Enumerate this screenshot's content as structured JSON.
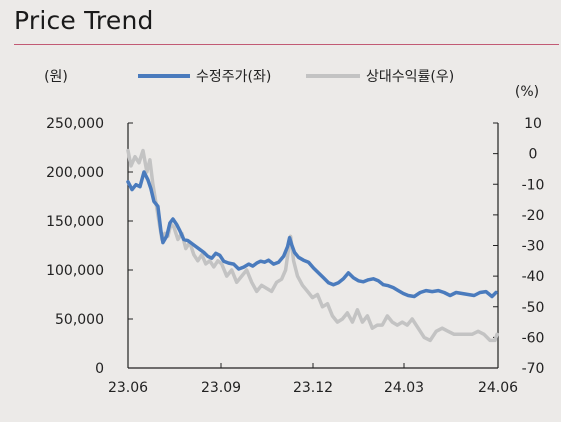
{
  "page": {
    "title": "Price Trend"
  },
  "chart_data": {
    "type": "line",
    "title": "Price Trend",
    "y_left_label": "(원)",
    "y_right_label": "(%)",
    "x_ticks": [
      "23.06",
      "23.09",
      "23.12",
      "24.03",
      "24.06"
    ],
    "y_left_ticks": [
      "250,000",
      "200,000",
      "150,000",
      "100,000",
      "50,000",
      "0"
    ],
    "y_right_ticks": [
      "10",
      "0",
      "-10",
      "-20",
      "-30",
      "-40",
      "-50",
      "-60",
      "-70"
    ],
    "y_left_range": [
      0,
      250000
    ],
    "y_right_range": [
      -70,
      10
    ],
    "legend_position": "top",
    "colors": {
      "price": "#4a7bbd",
      "relative": "#c3c3c3",
      "accent_rule": "#c25a74"
    },
    "series": [
      {
        "name": "수정주가(좌)",
        "axis": "left",
        "x": [
          "2023-06-01",
          "2023-06-05",
          "2023-06-09",
          "2023-06-13",
          "2023-06-17",
          "2023-06-21",
          "2023-06-24",
          "2023-06-27",
          "2023-07-01",
          "2023-07-04",
          "2023-07-06",
          "2023-07-10",
          "2023-07-13",
          "2023-07-16",
          "2023-07-20",
          "2023-07-23",
          "2023-07-27",
          "2023-07-31",
          "2023-08-04",
          "2023-08-08",
          "2023-08-12",
          "2023-08-16",
          "2023-08-20",
          "2023-08-24",
          "2023-08-28",
          "2023-09-01",
          "2023-09-05",
          "2023-09-10",
          "2023-09-15",
          "2023-09-20",
          "2023-09-25",
          "2023-09-30",
          "2023-10-04",
          "2023-10-08",
          "2023-10-12",
          "2023-10-16",
          "2023-10-20",
          "2023-10-25",
          "2023-10-30",
          "2023-11-04",
          "2023-11-08",
          "2023-11-10",
          "2023-11-12",
          "2023-11-15",
          "2023-11-19",
          "2023-11-24",
          "2023-11-29",
          "2023-12-04",
          "2023-12-09",
          "2023-12-14",
          "2023-12-19",
          "2023-12-24",
          "2023-12-29",
          "2024-01-03",
          "2024-01-08",
          "2024-01-13",
          "2024-01-18",
          "2024-01-23",
          "2024-01-28",
          "2024-02-02",
          "2024-02-07",
          "2024-02-12",
          "2024-02-17",
          "2024-02-22",
          "2024-02-27",
          "2024-03-03",
          "2024-03-08",
          "2024-03-14",
          "2024-03-20",
          "2024-03-26",
          "2024-04-01",
          "2024-04-07",
          "2024-04-13",
          "2024-04-19",
          "2024-04-25",
          "2024-05-01",
          "2024-05-07",
          "2024-05-13",
          "2024-05-19",
          "2024-05-25",
          "2024-05-31",
          "2024-06-04"
        ],
        "values": [
          190000,
          182000,
          187000,
          185000,
          200000,
          192000,
          183000,
          170000,
          165000,
          140000,
          128000,
          135000,
          148000,
          152000,
          146000,
          140000,
          131000,
          130000,
          127000,
          124000,
          121000,
          118000,
          114000,
          112000,
          117000,
          115000,
          109000,
          107000,
          106000,
          101000,
          103000,
          106000,
          104000,
          107000,
          109000,
          108000,
          110000,
          106000,
          108000,
          114000,
          124000,
          133000,
          126000,
          118000,
          113000,
          110000,
          108000,
          102000,
          97000,
          92000,
          87000,
          85000,
          87000,
          91000,
          97000,
          92000,
          89000,
          88000,
          90000,
          91000,
          89000,
          85000,
          84000,
          82000,
          79000,
          76000,
          74000,
          73000,
          77000,
          79000,
          78000,
          79000,
          77000,
          74000,
          77000,
          76000,
          75000,
          74000,
          77000,
          78000,
          73000,
          77000
        ]
      },
      {
        "name": "상대수익률(우)",
        "axis": "right",
        "x": [
          "2023-06-01",
          "2023-06-04",
          "2023-06-08",
          "2023-06-12",
          "2023-06-16",
          "2023-06-20",
          "2023-06-23",
          "2023-06-26",
          "2023-06-29",
          "2023-07-02",
          "2023-07-05",
          "2023-07-08",
          "2023-07-11",
          "2023-07-14",
          "2023-07-17",
          "2023-07-21",
          "2023-07-25",
          "2023-07-29",
          "2023-08-02",
          "2023-08-06",
          "2023-08-10",
          "2023-08-14",
          "2023-08-18",
          "2023-08-22",
          "2023-08-26",
          "2023-08-30",
          "2023-09-03",
          "2023-09-08",
          "2023-09-13",
          "2023-09-18",
          "2023-09-23",
          "2023-09-28",
          "2023-10-03",
          "2023-10-08",
          "2023-10-13",
          "2023-10-18",
          "2023-10-23",
          "2023-10-28",
          "2023-11-02",
          "2023-11-06",
          "2023-11-09",
          "2023-11-11",
          "2023-11-14",
          "2023-11-18",
          "2023-11-23",
          "2023-11-28",
          "2023-12-03",
          "2023-12-08",
          "2023-12-13",
          "2023-12-18",
          "2023-12-23",
          "2023-12-28",
          "2024-01-02",
          "2024-01-07",
          "2024-01-12",
          "2024-01-17",
          "2024-01-22",
          "2024-01-27",
          "2024-02-01",
          "2024-02-06",
          "2024-02-11",
          "2024-02-16",
          "2024-02-21",
          "2024-02-26",
          "2024-03-02",
          "2024-03-07",
          "2024-03-12",
          "2024-03-18",
          "2024-03-24",
          "2024-03-30",
          "2024-04-05",
          "2024-04-11",
          "2024-04-17",
          "2024-04-23",
          "2024-04-29",
          "2024-05-05",
          "2024-05-11",
          "2024-05-17",
          "2024-05-23",
          "2024-05-29",
          "2024-06-03",
          "2024-06-05"
        ],
        "values": [
          1,
          -4,
          -1,
          -3,
          1,
          -6,
          -2,
          -10,
          -16,
          -22,
          -28,
          -26,
          -27,
          -23,
          -24,
          -28,
          -26,
          -31,
          -29,
          -33,
          -35,
          -33,
          -36,
          -35,
          -37,
          -35,
          -36,
          -40,
          -38,
          -42,
          -40,
          -38,
          -42,
          -45,
          -43,
          -44,
          -45,
          -42,
          -41,
          -38,
          -31,
          -27,
          -35,
          -40,
          -43,
          -45,
          -47,
          -46,
          -50,
          -49,
          -53,
          -55,
          -54,
          -52,
          -55,
          -51,
          -55,
          -53,
          -57,
          -56,
          -56,
          -53,
          -55,
          -56,
          -55,
          -56,
          -54,
          -57,
          -60,
          -61,
          -58,
          -57,
          -58,
          -59,
          -59,
          -59,
          -59,
          -58,
          -59,
          -61,
          -61,
          -59
        ]
      }
    ]
  }
}
